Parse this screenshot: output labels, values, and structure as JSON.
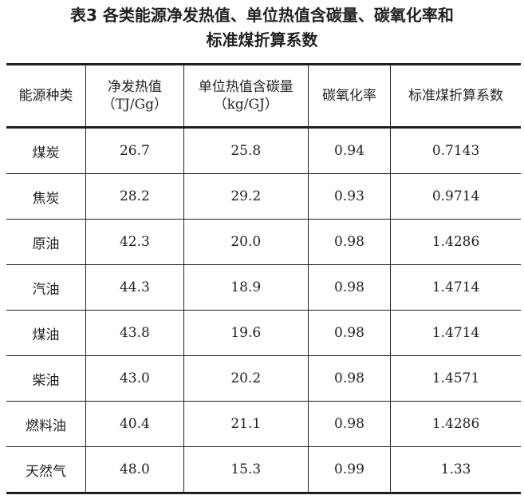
{
  "title": {
    "line1": "表3 各类能源净发热值、单位热值含碳量、碳氧化率和",
    "line2": "标准煤折算系数"
  },
  "table": {
    "headers": [
      "能源种类",
      "净发热值（TJ/Gg）",
      "单位热值含碳量（kg/GJ）",
      "碳氧化率",
      "标准煤折算系数"
    ],
    "rows": [
      [
        "煤炭",
        "26.7",
        "25.8",
        "0.94",
        "0.7143"
      ],
      [
        "焦炭",
        "28.2",
        "29.2",
        "0.93",
        "0.9714"
      ],
      [
        "原油",
        "42.3",
        "20.0",
        "0.98",
        "1.4286"
      ],
      [
        "汽油",
        "44.3",
        "18.9",
        "0.98",
        "1.4714"
      ],
      [
        "煤油",
        "43.8",
        "19.6",
        "0.98",
        "1.4714"
      ],
      [
        "柴油",
        "43.0",
        "20.2",
        "0.98",
        "1.4571"
      ],
      [
        "燃料油",
        "40.4",
        "21.1",
        "0.98",
        "1.4286"
      ],
      [
        "天然气",
        "48.0",
        "15.3",
        "0.99",
        "1.33"
      ]
    ]
  }
}
